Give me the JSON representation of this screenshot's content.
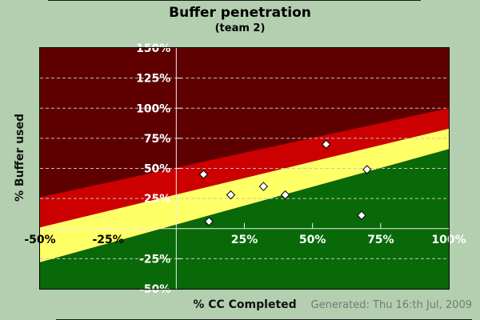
{
  "header": {
    "title": "Buffer penetration",
    "subtitle": "(team 2)"
  },
  "axes": {
    "x_title": "% CC Completed",
    "y_title": "% Buffer used"
  },
  "footer": {
    "generated": "Generated: Thu 16:th Jul, 2009"
  },
  "colors": {
    "page_bg": "#b3cfb0",
    "zone_dark_red": "#5e0000",
    "zone_red": "#cc0000",
    "zone_yellow": "#ffff66",
    "zone_green": "#096909",
    "grid": "#c4c4c4",
    "axis_line": "#eeeeee",
    "point_fill": "#ffffff",
    "point_stroke": "#000000",
    "footer_text": "#6f7d70",
    "border": "#000000"
  },
  "chart_data": {
    "type": "scatter",
    "title": "Buffer penetration",
    "subtitle": "(team 2)",
    "xlabel": "% CC Completed",
    "ylabel": "% Buffer used",
    "xlim": [
      -50,
      100
    ],
    "ylim": [
      -50,
      150
    ],
    "grid": "horizontal dashed lines every 25%, no vertical gridlines",
    "legend": false,
    "marker": "white diamond with black outline",
    "y_gridlines": [
      125,
      100,
      75,
      50,
      25,
      -25
    ],
    "y_tick_marks": [
      125,
      100,
      75,
      50,
      25,
      -25
    ],
    "x_tick_marks": [
      -25,
      25,
      50,
      75
    ],
    "y_tick_labels": [
      {
        "value": 150,
        "label": "150%",
        "color": "#ffffff"
      },
      {
        "value": 125,
        "label": "125%",
        "color": "#ffffff"
      },
      {
        "value": 100,
        "label": "100%",
        "color": "#ffffff"
      },
      {
        "value": 75,
        "label": "75%",
        "color": "#ffffff"
      },
      {
        "value": 50,
        "label": "50%",
        "color": "#ffffff"
      },
      {
        "value": 25,
        "label": "25%",
        "color": "#ffffff"
      },
      {
        "value": -25,
        "label": "-25%",
        "color": "#ffffff"
      },
      {
        "value": -50,
        "label": "-50%",
        "color": "#ffffff"
      }
    ],
    "x_tick_labels": [
      {
        "value": -50,
        "label": "-50%",
        "color": "#000000"
      },
      {
        "value": -25,
        "label": "-25%",
        "color": "#000000"
      },
      {
        "value": 25,
        "label": "25%",
        "color": "#ffffff"
      },
      {
        "value": 50,
        "label": "50%",
        "color": "#ffffff"
      },
      {
        "value": 75,
        "label": "75%",
        "color": "#ffffff"
      },
      {
        "value": 100,
        "label": "100%",
        "color": "#ffffff"
      }
    ],
    "zone_boundaries": {
      "dark_red_over_red": {
        "x": [
          -50,
          100
        ],
        "y": [
          26,
          100
        ]
      },
      "red_over_yellow": {
        "x": [
          -50,
          100
        ],
        "y": [
          1,
          83
        ]
      },
      "yellow_over_green": {
        "x": [
          -50,
          100
        ],
        "y": [
          -28,
          66
        ]
      }
    },
    "points": [
      {
        "x": 10,
        "y": 45
      },
      {
        "x": 12,
        "y": 6
      },
      {
        "x": 20,
        "y": 28
      },
      {
        "x": 32,
        "y": 35
      },
      {
        "x": 40,
        "y": 28
      },
      {
        "x": 55,
        "y": 70
      },
      {
        "x": 68,
        "y": 11
      },
      {
        "x": 70,
        "y": 49
      }
    ]
  }
}
